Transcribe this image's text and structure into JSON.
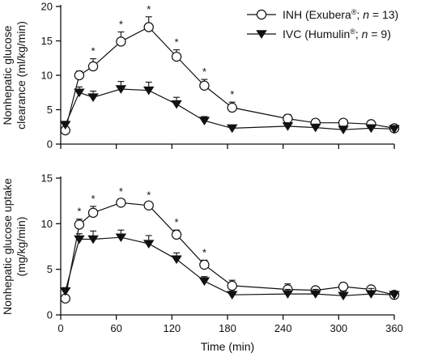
{
  "chart_data": [
    {
      "type": "line",
      "ylabel": "Nonhepatic glucose clearance (ml/kg/min)",
      "ylabel_lines": [
        "Nonhepatic glucose",
        "clearance (ml/kg/min)"
      ],
      "ylim": [
        0,
        20
      ],
      "yticks": [
        0,
        5,
        10,
        15,
        20
      ],
      "xlim": [
        0,
        360
      ],
      "xticks": [
        0,
        60,
        120,
        180,
        240,
        300,
        360
      ],
      "xtick_labels": [],
      "xlabel": "",
      "legend": {
        "placement": "top-right",
        "entries": [
          {
            "marker": "circle-open",
            "label_prefix": "INH (Exubera",
            "label_sup": "®",
            "label_mid": "; ",
            "label_italic": "n",
            "label_suffix": " = 13)"
          },
          {
            "marker": "triangle-down-filled",
            "label_prefix": "IVC (Humulin",
            "label_sup": "®",
            "label_mid": "; ",
            "label_italic": "n",
            "label_suffix": " = 9)"
          }
        ]
      },
      "series": [
        {
          "marker": "circle-open",
          "x": [
            5,
            20,
            35,
            65,
            95,
            125,
            155,
            185,
            245,
            275,
            305,
            335,
            360
          ],
          "y": [
            2.0,
            10.0,
            11.3,
            14.9,
            17.0,
            12.7,
            8.5,
            5.3,
            3.7,
            3.1,
            3.1,
            2.9,
            2.3
          ],
          "err": [
            0.4,
            0.6,
            1.1,
            1.4,
            1.5,
            1.0,
            0.9,
            0.8,
            0.6,
            0.4,
            0.4,
            0.5,
            0.4
          ],
          "significant": [
            false,
            false,
            true,
            true,
            true,
            true,
            true,
            true,
            false,
            false,
            false,
            false,
            false
          ]
        },
        {
          "marker": "triangle-down-filled",
          "x": [
            5,
            20,
            35,
            65,
            95,
            125,
            155,
            185,
            245,
            275,
            305,
            335,
            360
          ],
          "y": [
            2.8,
            7.5,
            6.8,
            8.0,
            7.8,
            5.8,
            3.4,
            2.3,
            2.6,
            2.4,
            2.1,
            2.3,
            2.2
          ],
          "err": [
            0.5,
            0.8,
            0.9,
            1.1,
            1.2,
            1.0,
            0.6,
            0.4,
            0.5,
            0.5,
            0.5,
            0.5,
            0.4
          ]
        }
      ],
      "significance_marker": "*"
    },
    {
      "type": "line",
      "ylabel": "Nonhepatic glucose uptake (mg/kg/min)",
      "ylabel_lines": [
        "Nonhepatic glucose uptake",
        "(mg/kg/min)"
      ],
      "ylim": [
        0,
        15
      ],
      "yticks": [
        0,
        5,
        10,
        15
      ],
      "xlim": [
        0,
        360
      ],
      "xticks": [
        0,
        60,
        120,
        180,
        240,
        300,
        360
      ],
      "xtick_labels": [
        "0",
        "60",
        "120",
        "180",
        "240",
        "300",
        "360"
      ],
      "xlabel": "Time (min)",
      "series": [
        {
          "marker": "circle-open",
          "x": [
            5,
            20,
            35,
            65,
            95,
            125,
            155,
            185,
            245,
            275,
            305,
            335,
            360
          ],
          "y": [
            1.8,
            9.9,
            11.2,
            12.3,
            12.0,
            8.8,
            5.5,
            3.2,
            2.8,
            2.7,
            3.1,
            2.8,
            2.2
          ],
          "err": [
            0.3,
            0.6,
            0.7,
            0.4,
            0.3,
            0.5,
            0.5,
            0.6,
            0.6,
            0.3,
            0.4,
            0.3,
            0.4
          ],
          "significant": [
            false,
            true,
            true,
            true,
            true,
            true,
            true,
            false,
            false,
            false,
            false,
            false,
            false
          ]
        },
        {
          "marker": "triangle-down-filled",
          "x": [
            5,
            20,
            35,
            65,
            95,
            125,
            155,
            185,
            245,
            275,
            305,
            335,
            360
          ],
          "y": [
            2.6,
            8.3,
            8.3,
            8.5,
            7.8,
            6.1,
            3.7,
            2.2,
            2.3,
            2.3,
            2.1,
            2.3,
            2.2
          ],
          "err": [
            0.4,
            0.6,
            0.9,
            0.8,
            0.9,
            0.7,
            0.5,
            0.4,
            0.5,
            0.5,
            0.5,
            0.6,
            0.4
          ]
        }
      ],
      "significance_marker": "*"
    }
  ]
}
